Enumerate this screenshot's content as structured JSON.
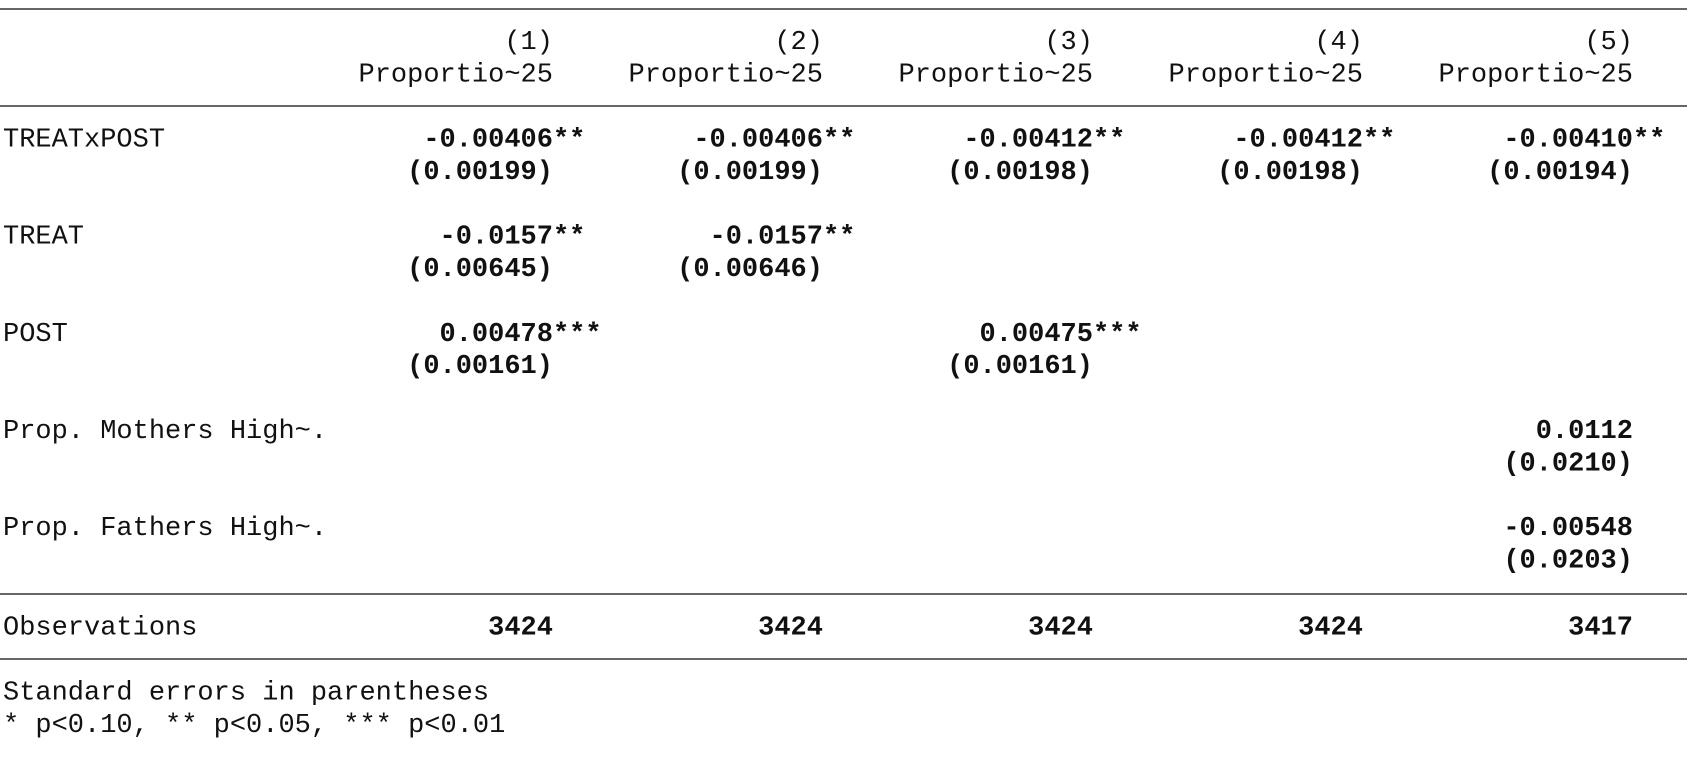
{
  "table": {
    "columns": [
      {
        "number": "(1)",
        "depvar": "Proportio~25"
      },
      {
        "number": "(2)",
        "depvar": "Proportio~25"
      },
      {
        "number": "(3)",
        "depvar": "Proportio~25"
      },
      {
        "number": "(4)",
        "depvar": "Proportio~25"
      },
      {
        "number": "(5)",
        "depvar": "Proportio~25"
      }
    ],
    "rows": [
      {
        "label": "TREATxPOST",
        "cells": [
          {
            "coef": "-0.00406",
            "stars": "**",
            "se": "(0.00199)"
          },
          {
            "coef": "-0.00406",
            "stars": "**",
            "se": "(0.00199)"
          },
          {
            "coef": "-0.00412",
            "stars": "**",
            "se": "(0.00198)"
          },
          {
            "coef": "-0.00412",
            "stars": "**",
            "se": "(0.00198)"
          },
          {
            "coef": "-0.00410",
            "stars": "**",
            "se": "(0.00194)"
          }
        ]
      },
      {
        "label": "TREAT",
        "cells": [
          {
            "coef": "-0.0157",
            "stars": "**",
            "se": "(0.00645)"
          },
          {
            "coef": "-0.0157",
            "stars": "**",
            "se": "(0.00646)"
          },
          null,
          null,
          null
        ]
      },
      {
        "label": "POST",
        "cells": [
          {
            "coef": "0.00478",
            "stars": "***",
            "se": "(0.00161)"
          },
          null,
          {
            "coef": "0.00475",
            "stars": "***",
            "se": "(0.00161)"
          },
          null,
          null
        ]
      },
      {
        "label": "Prop. Mothers High~.",
        "cells": [
          null,
          null,
          null,
          null,
          {
            "coef": "0.0112",
            "se": "(0.0210)"
          }
        ]
      },
      {
        "label": "Prop. Fathers High~.",
        "cells": [
          null,
          null,
          null,
          null,
          {
            "coef": "-0.00548",
            "se": "(0.0203)"
          }
        ]
      }
    ],
    "observations": {
      "label": "Observations",
      "values": [
        3424,
        3424,
        3424,
        3424,
        3417
      ]
    }
  },
  "notes": [
    "Standard errors in parentheses",
    "* p<0.10, ** p<0.05, *** p<0.01"
  ]
}
